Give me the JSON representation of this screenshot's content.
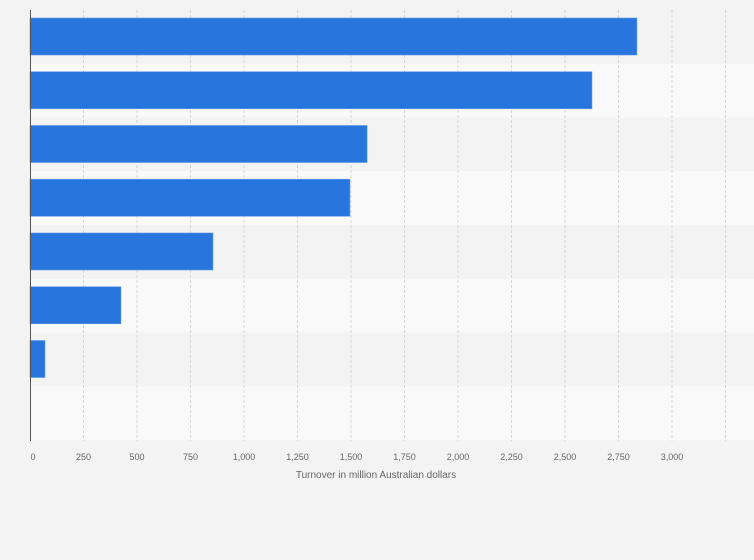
{
  "chart_data": {
    "type": "bar",
    "orientation": "horizontal",
    "categories": [
      "",
      "",
      "",
      "",
      "",
      "",
      "",
      ""
    ],
    "values": [
      2836,
      2626,
      1575,
      1495,
      855,
      425,
      70,
      0
    ],
    "xlabel": "Turnover in million Australian dollars",
    "ylabel": "",
    "xlim": [
      0,
      3250
    ],
    "ticks": [
      0,
      250,
      500,
      750,
      1000,
      1250,
      1500,
      1750,
      2000,
      2250,
      2500,
      2750,
      3000
    ],
    "tick_labels": [
      "0",
      "250",
      "500",
      "750",
      "1,000",
      "1,250",
      "1,500",
      "1,750",
      "2,000",
      "2,250",
      "2,500",
      "2,750",
      "3,000"
    ],
    "grid": true,
    "bar_color": "#2876dd"
  }
}
